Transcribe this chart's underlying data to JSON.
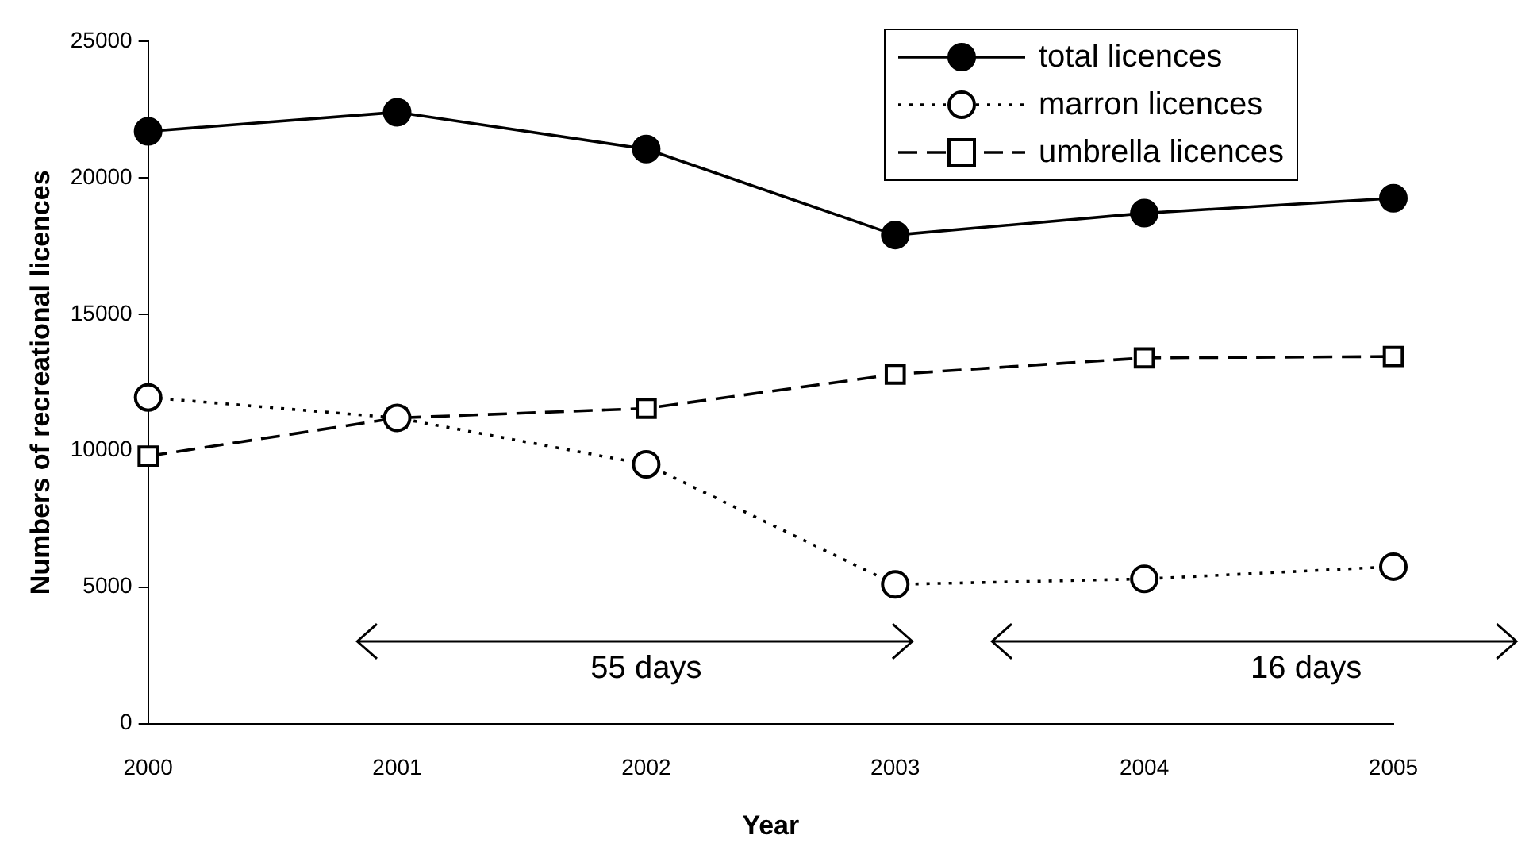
{
  "chart_data": {
    "type": "line",
    "xlabel": "Year",
    "ylabel": "Numbers of recreational licences",
    "categories": [
      "2000",
      "2001",
      "2002",
      "2003",
      "2004",
      "2005"
    ],
    "series": [
      {
        "name": "total licences",
        "color": "#000000",
        "marker": "circle",
        "line_style": "solid",
        "values": [
          21700,
          22400,
          21050,
          17900,
          18700,
          19250
        ]
      },
      {
        "name": "marron licences",
        "color": "#000000",
        "marker": "circle",
        "line_style": "dotted",
        "values": [
          11950,
          11200,
          9500,
          5100,
          5300,
          5750
        ]
      },
      {
        "name": "umbrella licences",
        "color": "#000000",
        "marker": "square",
        "line_style": "dashed",
        "values": [
          9800,
          11200,
          11550,
          12800,
          13400,
          13450
        ]
      }
    ],
    "ylim": [
      0,
      25000
    ],
    "yticks": [
      0,
      5000,
      10000,
      15000,
      20000,
      25000
    ],
    "grid": false,
    "legend": "top right",
    "annotations": [
      "55 days",
      "16 days"
    ]
  }
}
